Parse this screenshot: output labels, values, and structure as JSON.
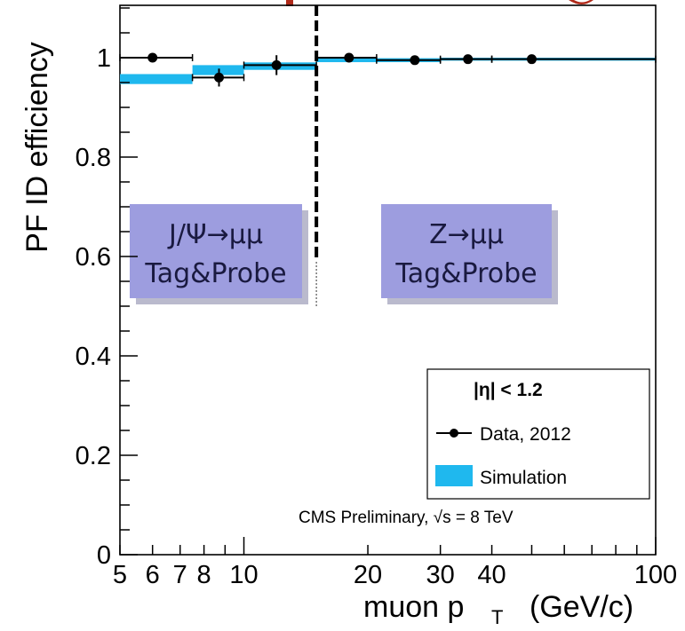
{
  "chart_data": {
    "type": "scatter",
    "title": "",
    "xlabel": "muon p",
    "xlabel_sub": "T",
    "xlabel_unit": "(GeV/c)",
    "ylabel": "PF ID efficiency",
    "x_scale": "log",
    "xlim": [
      5,
      100
    ],
    "ylim": [
      0,
      1.1
    ],
    "x_tick_labels": [
      "5",
      "6",
      "7",
      "8",
      "10",
      "20",
      "30",
      "40",
      "100"
    ],
    "x_ticks": [
      5,
      6,
      7,
      8,
      10,
      20,
      30,
      40,
      100
    ],
    "y_tick_labels": [
      "0",
      "0.2",
      "0.4",
      "0.6",
      "0.8",
      "1"
    ],
    "y_ticks": [
      0,
      0.2,
      0.4,
      0.6,
      0.8,
      1.0
    ],
    "divider_x": 15,
    "series": [
      {
        "name": "Data, 2012",
        "color": "#000000",
        "points": [
          {
            "x": 6,
            "y": 1.0,
            "xerr": [
              5,
              7.5
            ],
            "yerr": 0.005
          },
          {
            "x": 8.7,
            "y": 0.96,
            "xerr": [
              7.5,
              10
            ],
            "yerr": 0.018
          },
          {
            "x": 12,
            "y": 0.985,
            "xerr": [
              10,
              15
            ],
            "yerr": 0.02
          },
          {
            "x": 18,
            "y": 1.0,
            "xerr": [
              15,
              21
            ],
            "yerr": 0.004
          },
          {
            "x": 26,
            "y": 0.995,
            "xerr": [
              21,
              30
            ],
            "yerr": 0.003
          },
          {
            "x": 35,
            "y": 0.997,
            "xerr": [
              30,
              40
            ],
            "yerr": 0.003
          },
          {
            "x": 50,
            "y": 0.997,
            "xerr": [
              40,
              100
            ],
            "yerr": 0.003
          }
        ]
      },
      {
        "name": "Simulation",
        "color": "#1fb8ee",
        "bins": [
          {
            "x0": 5,
            "x1": 7.5,
            "y": 0.957,
            "h": 0.02
          },
          {
            "x0": 7.5,
            "x1": 10,
            "y": 0.975,
            "h": 0.02
          },
          {
            "x0": 10,
            "x1": 15,
            "y": 0.983,
            "h": 0.015
          },
          {
            "x0": 15,
            "x1": 30,
            "y": 0.995,
            "h": 0.008
          },
          {
            "x0": 30,
            "x1": 100,
            "y": 0.997,
            "h": 0.006
          }
        ]
      }
    ],
    "annotations": {
      "left_box": {
        "line1": "J/Ψ→μμ",
        "line2": "Tag&Probe"
      },
      "right_box": {
        "line1": "Z→μμ",
        "line2": "Tag&Probe"
      }
    },
    "legend": {
      "placement": "bottom-right",
      "header": "|η| < 1.2",
      "entries": [
        "Data, 2012",
        "Simulation"
      ]
    },
    "note": "CMS Preliminary, √s = 8 TeV",
    "colors": {
      "box_fill": "#9d9ddf",
      "sim": "#1fb8ee",
      "data": "#000000",
      "banner_text": "#b02a1a"
    }
  }
}
